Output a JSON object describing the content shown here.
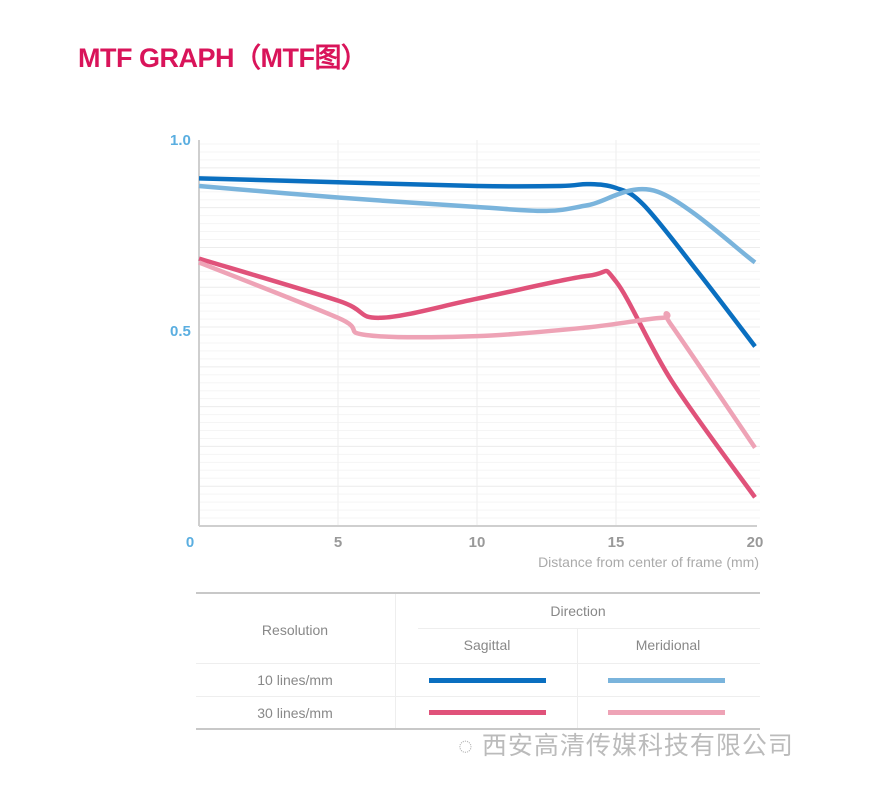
{
  "title": "MTF GRAPH（MTF图）",
  "chart_data": {
    "type": "line",
    "xlabel": "Distance from center of frame (mm)",
    "ylabel": "",
    "xlim": [
      0,
      20
    ],
    "ylim": [
      0,
      1.0
    ],
    "x_ticks": [
      "0",
      "5",
      "10",
      "15",
      "20"
    ],
    "y_ticks": [
      "1.0",
      "0.5"
    ],
    "grid": true,
    "series": [
      {
        "resolution": "10 lines/mm",
        "direction": "Sagittal",
        "color": "#0a6fc0",
        "points": [
          [
            0,
            0.91
          ],
          [
            5,
            0.9
          ],
          [
            10,
            0.89
          ],
          [
            13,
            0.89
          ],
          [
            14,
            0.895
          ],
          [
            15,
            0.885
          ],
          [
            16,
            0.84
          ],
          [
            18,
            0.66
          ],
          [
            20,
            0.47
          ]
        ]
      },
      {
        "resolution": "10 lines/mm",
        "direction": "Meridional",
        "color": "#7ab4dc",
        "points": [
          [
            0,
            0.89
          ],
          [
            5,
            0.86
          ],
          [
            10,
            0.835
          ],
          [
            12.5,
            0.825
          ],
          [
            14,
            0.84
          ],
          [
            16.5,
            0.875
          ],
          [
            20,
            0.69
          ]
        ]
      },
      {
        "resolution": "30 lines/mm",
        "direction": "Sagittal",
        "color": "#e0527a",
        "points": [
          [
            0,
            0.7
          ],
          [
            5,
            0.59
          ],
          [
            6.5,
            0.545
          ],
          [
            10,
            0.595
          ],
          [
            14,
            0.655
          ],
          [
            15,
            0.64
          ],
          [
            17,
            0.38
          ],
          [
            20,
            0.075
          ]
        ]
      },
      {
        "resolution": "30 lines/mm",
        "direction": "Meridional",
        "color": "#eea3b6",
        "points": [
          [
            0,
            0.69
          ],
          [
            5,
            0.545
          ],
          [
            6,
            0.5
          ],
          [
            10,
            0.497
          ],
          [
            14,
            0.52
          ],
          [
            16.7,
            0.545
          ],
          [
            17,
            0.525
          ],
          [
            20,
            0.205
          ]
        ]
      }
    ]
  },
  "legend_table": {
    "resolution_header": "Resolution",
    "direction_header": "Direction",
    "sagittal": "Sagittal",
    "meridional": "Meridional",
    "rows": [
      "10 lines/mm",
      "30 lines/mm"
    ]
  },
  "watermark": "西安高清传媒科技有限公司"
}
